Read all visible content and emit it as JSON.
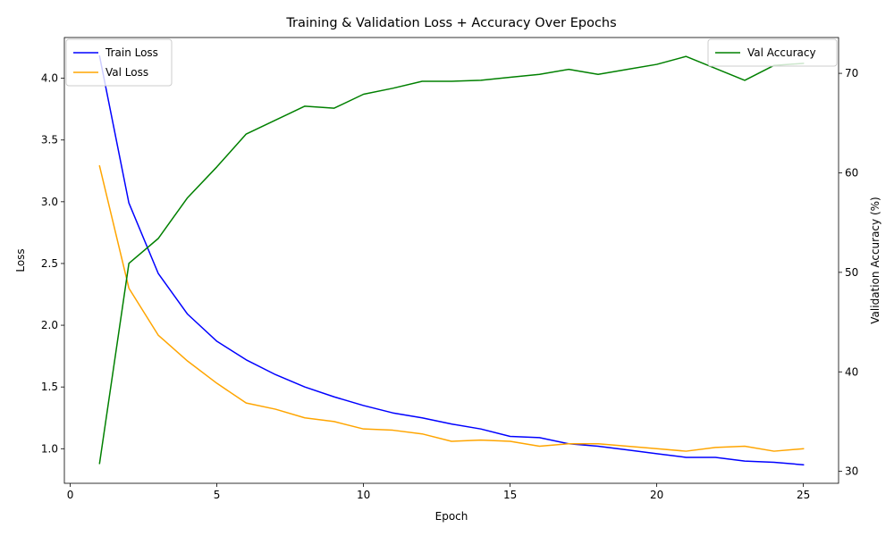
{
  "chart_data": {
    "type": "line",
    "title": "Training & Validation Loss + Accuracy Over Epochs",
    "xlabel": "Epoch",
    "ylabel": "Loss",
    "y2label": "Validation Accuracy (%)",
    "xlim": [
      -0.2,
      26.2
    ],
    "ylim": [
      0.72,
      4.33
    ],
    "y2lim": [
      28.8,
      73.6
    ],
    "xticks": [
      0,
      5,
      10,
      15,
      20,
      25
    ],
    "yticks": [
      1.0,
      1.5,
      2.0,
      2.5,
      3.0,
      3.5,
      4.0
    ],
    "ytick_labels": [
      "1.0",
      "1.5",
      "2.0",
      "2.5",
      "3.0",
      "3.5",
      "4.0"
    ],
    "y2ticks": [
      30,
      40,
      50,
      60,
      70
    ],
    "grid": false,
    "x": [
      1,
      2,
      3,
      4,
      5,
      6,
      7,
      8,
      9,
      10,
      11,
      12,
      13,
      14,
      15,
      16,
      17,
      18,
      19,
      20,
      21,
      22,
      23,
      24,
      25
    ],
    "series": [
      {
        "name": "Train Loss",
        "axis": "left",
        "color": "#0000ff",
        "values": [
          4.18,
          2.99,
          2.42,
          2.09,
          1.87,
          1.72,
          1.6,
          1.5,
          1.42,
          1.35,
          1.29,
          1.25,
          1.2,
          1.16,
          1.1,
          1.09,
          1.04,
          1.02,
          0.99,
          0.96,
          0.93,
          0.93,
          0.9,
          0.89,
          0.87
        ]
      },
      {
        "name": "Val Loss",
        "axis": "left",
        "color": "#ffa500",
        "values": [
          3.29,
          2.3,
          1.92,
          1.71,
          1.53,
          1.37,
          1.32,
          1.25,
          1.22,
          1.16,
          1.15,
          1.12,
          1.06,
          1.07,
          1.06,
          1.02,
          1.04,
          1.04,
          1.02,
          1.0,
          0.98,
          1.01,
          1.02,
          0.98,
          1.0
        ]
      },
      {
        "name": "Val Accuracy",
        "axis": "right",
        "color": "#008000",
        "values": [
          30.8,
          50.9,
          53.4,
          57.5,
          60.6,
          63.9,
          65.3,
          66.7,
          66.5,
          67.9,
          68.5,
          69.2,
          69.2,
          69.3,
          69.6,
          69.9,
          70.4,
          69.9,
          70.4,
          70.9,
          71.7,
          70.5,
          69.3,
          70.8,
          71.0
        ]
      }
    ],
    "legend_left": {
      "position": "upper-left",
      "entries": [
        "Train Loss",
        "Val Loss"
      ]
    },
    "legend_right": {
      "position": "upper-right",
      "entries": [
        "Val Accuracy"
      ]
    }
  }
}
